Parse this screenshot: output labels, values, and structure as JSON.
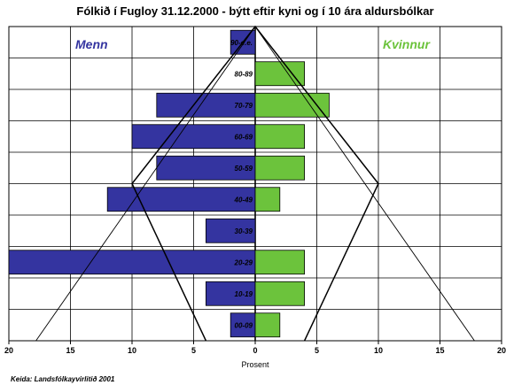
{
  "chart_data": {
    "type": "bar",
    "title": "Fólkið í Fugloy 31.12.2000 - býtt eftir kyni og í 10 ára aldursbólkar",
    "xlabel": "Prosent",
    "source": "Keida: Landsfólkayvirlitið 2001",
    "xlim": [
      -20,
      20
    ],
    "xticks": [
      -20,
      -15,
      -10,
      -5,
      0,
      5,
      10,
      15,
      20
    ],
    "xtick_labels": [
      "20",
      "15",
      "10",
      "5",
      "0",
      "5",
      "10",
      "15",
      "20"
    ],
    "grid": true,
    "categories": [
      "00-09",
      "10-19",
      "20-29",
      "30-39",
      "40-49",
      "50-59",
      "60-69",
      "70-79",
      "80-89",
      "90-e.e."
    ],
    "series": [
      {
        "name": "Menn",
        "side": "left",
        "color": "#3434a0",
        "values": [
          2.0,
          4.0,
          20.0,
          4.0,
          12.0,
          8.0,
          10.0,
          8.0,
          0.0,
          2.0
        ]
      },
      {
        "name": "Kvinnur",
        "side": "right",
        "color": "#6cc33c",
        "values": [
          2.0,
          4.0,
          4.0,
          0.0,
          2.0,
          4.0,
          4.0,
          6.0,
          4.0,
          0.0
        ]
      }
    ],
    "reference_outlines": [
      {
        "points": [
          [
            -17.8,
            0
          ],
          [
            0,
            10
          ],
          [
            17.8,
            0
          ]
        ]
      },
      {
        "points": [
          [
            -4,
            0
          ],
          [
            -10,
            5
          ],
          [
            0,
            10
          ],
          [
            10,
            5
          ],
          [
            4,
            0
          ]
        ]
      }
    ]
  }
}
